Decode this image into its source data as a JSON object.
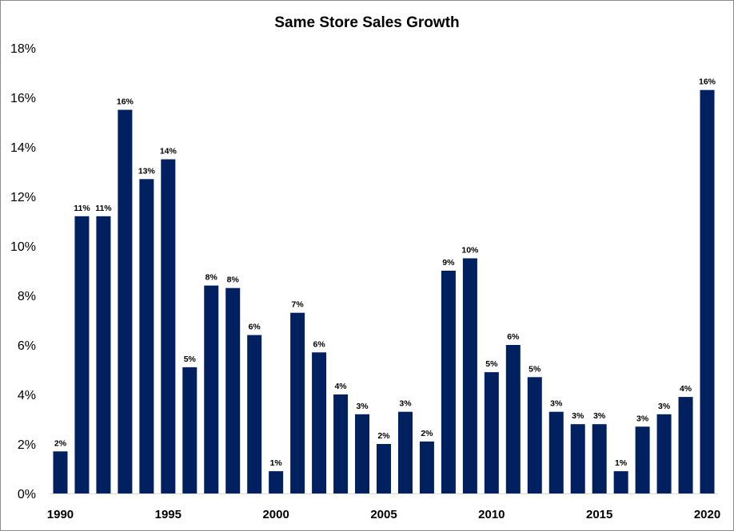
{
  "chart_data": {
    "type": "bar",
    "title": "Same Store Sales Growth",
    "xlabel": "",
    "ylabel": "",
    "categories": [
      "1990",
      "1991",
      "1992",
      "1993",
      "1994",
      "1995",
      "1996",
      "1997",
      "1998",
      "1999",
      "2000",
      "2001",
      "2002",
      "2003",
      "2004",
      "2005",
      "2006",
      "2007",
      "2008",
      "2009",
      "2010",
      "2011",
      "2012",
      "2013",
      "2014",
      "2015",
      "2016",
      "2017",
      "2018",
      "2019",
      "2020"
    ],
    "values": [
      1.7,
      11.2,
      11.2,
      15.5,
      12.7,
      13.5,
      5.1,
      8.4,
      8.3,
      6.4,
      0.9,
      7.3,
      5.7,
      4.0,
      3.2,
      2.0,
      3.3,
      2.1,
      9.0,
      9.5,
      4.9,
      6.0,
      4.7,
      3.3,
      2.8,
      2.8,
      0.9,
      2.7,
      3.2,
      3.9,
      16.3
    ],
    "data_labels": [
      "2%",
      "11%",
      "11%",
      "16%",
      "13%",
      "14%",
      "5%",
      "8%",
      "8%",
      "6%",
      "1%",
      "7%",
      "6%",
      "4%",
      "3%",
      "2%",
      "3%",
      "2%",
      "9%",
      "10%",
      "5%",
      "6%",
      "5%",
      "3%",
      "3%",
      "3%",
      "1%",
      "3%",
      "3%",
      "4%",
      "16%"
    ],
    "x_tick_labels": [
      "1990",
      "1995",
      "2000",
      "2005",
      "2010",
      "2015",
      "2020"
    ],
    "x_tick_years": [
      1990,
      1995,
      2000,
      2005,
      2010,
      2015,
      2020
    ],
    "y_tick_values": [
      0,
      2,
      4,
      6,
      8,
      10,
      12,
      14,
      16,
      18
    ],
    "y_tick_labels": [
      "0%",
      "2%",
      "4%",
      "6%",
      "8%",
      "10%",
      "12%",
      "14%",
      "16%",
      "18%"
    ],
    "ylim": [
      0,
      18
    ],
    "grid": false,
    "legend": "none",
    "bar_color": "#002060"
  }
}
